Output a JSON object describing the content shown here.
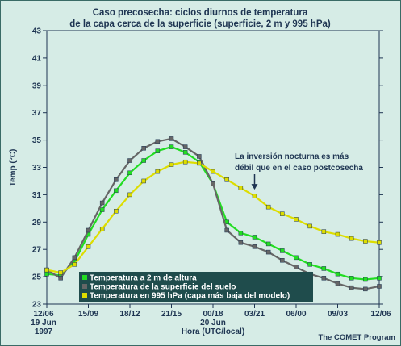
{
  "chart_data": {
    "type": "line",
    "title": [
      "Caso precosecha: ciclos diurnos de temperatura",
      "de la capa cerca de la superficie (superficie, 2 m y 995 hPa)"
    ],
    "xlabel": "Hora (UTC/local)",
    "ylabel": "Temp (°C)",
    "ylim": [
      23,
      43
    ],
    "yticks": [
      23,
      25,
      27,
      29,
      31,
      33,
      35,
      37,
      39,
      41,
      43
    ],
    "x_tick_labels": [
      "12/06",
      "15/09",
      "18/12",
      "21/15",
      "00/18",
      "03/21",
      "06/00",
      "09/03",
      "12/06"
    ],
    "x_tick_sublabels": [
      {
        "tick": 0,
        "lines": [
          "19 Jun",
          "1997"
        ]
      },
      {
        "tick": 4,
        "lines": [
          "20 Jun"
        ]
      }
    ],
    "x": [
      0,
      1,
      2,
      3,
      4,
      5,
      6,
      7,
      8,
      9,
      10,
      11,
      12,
      13,
      14,
      15,
      16,
      17,
      18,
      19,
      20,
      21,
      22,
      23,
      24
    ],
    "series": [
      {
        "name": "Temperatura a 2 m de altura",
        "color": "#22dd22",
        "marker": "square",
        "values": [
          25.2,
          25.1,
          26.1,
          28.1,
          29.9,
          31.3,
          32.6,
          33.5,
          34.2,
          34.5,
          34.1,
          33.4,
          31.8,
          29.0,
          28.2,
          27.9,
          27.4,
          26.9,
          26.4,
          25.9,
          25.6,
          25.2,
          24.9,
          24.8,
          24.9
        ]
      },
      {
        "name": "Temperatura de la superficie del suelo",
        "color": "#666666",
        "marker": "square",
        "values": [
          25.5,
          24.9,
          26.4,
          28.4,
          30.4,
          32.1,
          33.5,
          34.4,
          34.9,
          35.1,
          34.5,
          33.8,
          31.8,
          28.4,
          27.5,
          27.2,
          26.8,
          26.2,
          25.7,
          25.2,
          24.9,
          24.5,
          24.2,
          24.1,
          24.3
        ]
      },
      {
        "name": "Temperatura en 995 hPa (capa más baja del modelo)",
        "color": "#dddd00",
        "marker": "square",
        "values": [
          25.5,
          25.3,
          25.9,
          27.2,
          28.5,
          29.8,
          31.0,
          32.0,
          32.7,
          33.2,
          33.4,
          33.3,
          32.7,
          32.1,
          31.5,
          30.9,
          30.1,
          29.6,
          29.2,
          28.7,
          28.3,
          28.1,
          27.8,
          27.6,
          27.5
        ]
      }
    ],
    "legend_position": "bottom-left",
    "annotation": {
      "lines": [
        "La inversión nocturna es más",
        "débil que en el caso postcosecha"
      ],
      "arrow_to_x": 15,
      "arrow_to_series": "Temperatura en 995 hPa (capa más baja del modelo)"
    },
    "grid": false
  },
  "credit": "The COMET Program"
}
